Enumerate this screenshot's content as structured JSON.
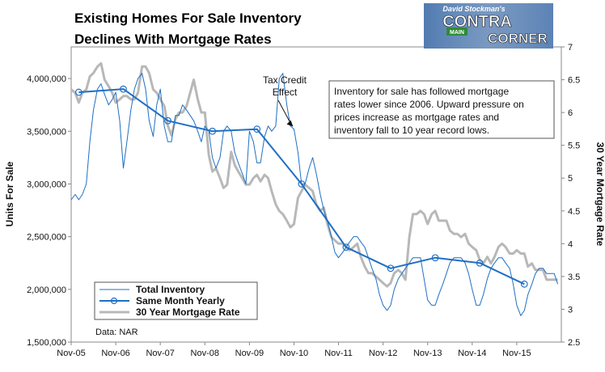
{
  "chart_data": {
    "type": "line",
    "title_lines": [
      "Existing Homes For Sale Inventory",
      "Declines With Mortgage Rates"
    ],
    "ylabel_left": "Units For Sale",
    "ylabel_right": "30 Year Mortgage Rate",
    "ylim_left": [
      1500000,
      4300000
    ],
    "ylim_right": [
      2.5,
      7
    ],
    "xlim": [
      2005.83,
      2016.83
    ],
    "x_tick_labels": [
      "Nov-05",
      "Nov-06",
      "Nov-07",
      "Nov-08",
      "Nov-09",
      "Nov-10",
      "Nov-11",
      "Nov-12",
      "Nov-13",
      "Nov-14",
      "Nov-15"
    ],
    "x_tick_values": [
      2005.83,
      2006.83,
      2007.83,
      2008.83,
      2009.83,
      2010.83,
      2011.83,
      2012.83,
      2013.83,
      2014.83,
      2015.83
    ],
    "y_tick_labels_left": [
      "1,500,000",
      "2,000,000",
      "2,500,000",
      "3,000,000",
      "3,500,000",
      "4,000,000"
    ],
    "y_tick_values_left": [
      1500000,
      2000000,
      2500000,
      3000000,
      3500000,
      4000000
    ],
    "y_tick_labels_right": [
      "2.5",
      "3",
      "3.5",
      "4",
      "4.5",
      "5",
      "5.5",
      "6",
      "6.5",
      "7"
    ],
    "y_tick_values_right": [
      2.5,
      3,
      3.5,
      4,
      4.5,
      5,
      5.5,
      6,
      6.5,
      7
    ],
    "grid": false,
    "legend_position": "bottom-left",
    "series": [
      {
        "name": "Total Inventory",
        "axis": "left",
        "color": "#1f6fc4",
        "x": [
          2005.83,
          2005.92,
          2006.0,
          2006.08,
          2006.17,
          2006.25,
          2006.33,
          2006.42,
          2006.5,
          2006.58,
          2006.67,
          2006.75,
          2006.83,
          2006.92,
          2007.0,
          2007.08,
          2007.17,
          2007.25,
          2007.33,
          2007.42,
          2007.5,
          2007.58,
          2007.67,
          2007.75,
          2007.83,
          2007.92,
          2008.0,
          2008.08,
          2008.17,
          2008.25,
          2008.33,
          2008.42,
          2008.5,
          2008.58,
          2008.67,
          2008.75,
          2008.83,
          2008.92,
          2009.0,
          2009.08,
          2009.17,
          2009.25,
          2009.33,
          2009.42,
          2009.5,
          2009.58,
          2009.67,
          2009.75,
          2009.83,
          2009.92,
          2010.0,
          2010.08,
          2010.17,
          2010.25,
          2010.33,
          2010.42,
          2010.5,
          2010.58,
          2010.67,
          2010.75,
          2010.83,
          2010.92,
          2011.0,
          2011.08,
          2011.17,
          2011.25,
          2011.33,
          2011.42,
          2011.5,
          2011.58,
          2011.67,
          2011.75,
          2011.83,
          2011.92,
          2012.0,
          2012.08,
          2012.17,
          2012.25,
          2012.33,
          2012.42,
          2012.5,
          2012.58,
          2012.67,
          2012.75,
          2012.83,
          2012.92,
          2013.0,
          2013.08,
          2013.17,
          2013.25,
          2013.33,
          2013.42,
          2013.5,
          2013.58,
          2013.67,
          2013.75,
          2013.83,
          2013.92,
          2014.0,
          2014.08,
          2014.17,
          2014.25,
          2014.33,
          2014.42,
          2014.5,
          2014.58,
          2014.67,
          2014.75,
          2014.83,
          2014.92,
          2015.0,
          2015.08,
          2015.17,
          2015.25,
          2015.33,
          2015.42,
          2015.5,
          2015.58,
          2015.67,
          2015.75,
          2015.83,
          2015.92,
          2016.0,
          2016.08,
          2016.17,
          2016.25,
          2016.33,
          2016.42,
          2016.5,
          2016.58,
          2016.67,
          2016.75
        ],
        "values": [
          2850000,
          2900000,
          2850000,
          2900000,
          3000000,
          3400000,
          3700000,
          3900000,
          3950000,
          3850000,
          3750000,
          3800000,
          3870000,
          3600000,
          3150000,
          3400000,
          3700000,
          3900000,
          4000000,
          4050000,
          3900000,
          3600000,
          3450000,
          3750000,
          3900000,
          3550000,
          3400000,
          3400000,
          3650000,
          3650000,
          3750000,
          3700000,
          3650000,
          3600000,
          3500000,
          3400000,
          3550000,
          3500000,
          3250000,
          3150000,
          3250000,
          3500000,
          3550000,
          3500000,
          3300000,
          3200000,
          3100000,
          3000000,
          3500000,
          3400000,
          3200000,
          3200000,
          3450000,
          3550000,
          3500000,
          3550000,
          4000000,
          4050000,
          3750000,
          3550000,
          3520000,
          3300000,
          3000000,
          3000000,
          3150000,
          3250000,
          3100000,
          2900000,
          2750000,
          2650000,
          2500000,
          2350000,
          2300000,
          2350000,
          2400000,
          2450000,
          2500000,
          2500000,
          2450000,
          2400000,
          2300000,
          2200000,
          2100000,
          1950000,
          1850000,
          1800000,
          1850000,
          2000000,
          2100000,
          2150000,
          2200000,
          2250000,
          2300000,
          2300000,
          2300000,
          2100000,
          1900000,
          1850000,
          1850000,
          1950000,
          2050000,
          2150000,
          2250000,
          2300000,
          2300000,
          2300000,
          2250000,
          2150000,
          2000000,
          1850000,
          1850000,
          1950000,
          2100000,
          2200000,
          2250000,
          2300000,
          2300000,
          2250000,
          2200000,
          2050000,
          1850000,
          1750000,
          1800000,
          1950000,
          2050000,
          2150000,
          2200000,
          2200000,
          2150000,
          2150000,
          2150000,
          2050000
        ]
      },
      {
        "name": "Same Month Yearly",
        "axis": "left",
        "color": "#1f6fc4",
        "x": [
          2006.0,
          2007.0,
          2008.0,
          2009.0,
          2010.0,
          2011.0,
          2012.0,
          2013.0,
          2014.0,
          2015.0,
          2016.0
        ],
        "values": [
          3870000,
          3900000,
          3600000,
          3500000,
          3520000,
          3000000,
          2400000,
          2200000,
          2300000,
          2250000,
          2050000
        ]
      },
      {
        "name": "30 Year Mortgage Rate",
        "axis": "right",
        "color": "#b8b8b8",
        "x": [
          2005.83,
          2005.92,
          2006.0,
          2006.08,
          2006.17,
          2006.25,
          2006.33,
          2006.42,
          2006.5,
          2006.58,
          2006.67,
          2006.75,
          2006.83,
          2006.92,
          2007.0,
          2007.08,
          2007.17,
          2007.25,
          2007.33,
          2007.42,
          2007.5,
          2007.58,
          2007.67,
          2007.75,
          2007.83,
          2007.92,
          2008.0,
          2008.08,
          2008.17,
          2008.25,
          2008.33,
          2008.42,
          2008.5,
          2008.58,
          2008.67,
          2008.75,
          2008.83,
          2008.92,
          2009.0,
          2009.08,
          2009.17,
          2009.25,
          2009.33,
          2009.42,
          2009.5,
          2009.58,
          2009.67,
          2009.75,
          2009.83,
          2009.92,
          2010.0,
          2010.08,
          2010.17,
          2010.25,
          2010.33,
          2010.42,
          2010.5,
          2010.58,
          2010.67,
          2010.75,
          2010.83,
          2010.92,
          2011.0,
          2011.08,
          2011.17,
          2011.25,
          2011.33,
          2011.42,
          2011.5,
          2011.58,
          2011.67,
          2011.75,
          2011.83,
          2011.92,
          2012.0,
          2012.08,
          2012.17,
          2012.25,
          2012.33,
          2012.42,
          2012.5,
          2012.58,
          2012.67,
          2012.75,
          2012.83,
          2012.92,
          2013.0,
          2013.08,
          2013.17,
          2013.25,
          2013.33,
          2013.42,
          2013.5,
          2013.58,
          2013.67,
          2013.75,
          2013.83,
          2013.92,
          2014.0,
          2014.08,
          2014.17,
          2014.25,
          2014.33,
          2014.42,
          2014.5,
          2014.58,
          2014.67,
          2014.75,
          2014.83,
          2014.92,
          2015.0,
          2015.08,
          2015.17,
          2015.25,
          2015.33,
          2015.42,
          2015.5,
          2015.58,
          2015.67,
          2015.75,
          2015.83,
          2015.92,
          2016.0,
          2016.08,
          2016.17,
          2016.25,
          2016.33,
          2016.42,
          2016.5,
          2016.58,
          2016.67,
          2016.75
        ],
        "values": [
          6.35,
          6.3,
          6.15,
          6.3,
          6.35,
          6.55,
          6.6,
          6.7,
          6.75,
          6.5,
          6.4,
          6.3,
          6.15,
          6.2,
          6.25,
          6.25,
          6.2,
          6.2,
          6.3,
          6.7,
          6.7,
          6.6,
          6.35,
          6.3,
          6.2,
          6.1,
          5.8,
          5.65,
          5.9,
          6.0,
          6.0,
          6.1,
          6.3,
          6.5,
          6.2,
          6.0,
          6.0,
          5.35,
          5.1,
          5.15,
          5.0,
          4.85,
          4.9,
          5.4,
          5.2,
          5.1,
          5.0,
          4.9,
          4.9,
          5.0,
          5.05,
          4.95,
          5.05,
          5.0,
          4.8,
          4.6,
          4.5,
          4.45,
          4.35,
          4.25,
          4.3,
          4.7,
          4.8,
          4.9,
          4.85,
          4.8,
          4.6,
          4.5,
          4.55,
          4.3,
          4.1,
          4.05,
          4.0,
          4.0,
          3.95,
          3.9,
          3.95,
          4.0,
          3.8,
          3.65,
          3.55,
          3.55,
          3.5,
          3.45,
          3.4,
          3.35,
          3.4,
          3.55,
          3.6,
          3.55,
          3.45,
          4.1,
          4.45,
          4.45,
          4.5,
          4.45,
          4.3,
          4.45,
          4.5,
          4.35,
          4.35,
          4.35,
          4.2,
          4.15,
          4.15,
          4.1,
          4.15,
          4.0,
          3.95,
          3.9,
          3.75,
          3.7,
          3.8,
          3.7,
          3.8,
          3.95,
          4.0,
          3.95,
          3.85,
          3.85,
          3.9,
          3.85,
          3.85,
          3.65,
          3.7,
          3.6,
          3.6,
          3.6,
          3.45,
          3.45,
          3.45,
          3.45
        ]
      }
    ],
    "annotations": [
      {
        "text_lines": [
          "Tax Credit",
          "Effect"
        ],
        "x": 2010.83,
        "y": 3520000
      },
      {
        "text_lines": [
          "Inventory for sale has followed mortgage",
          "rates lower since 2006. Upward pressure on",
          "prices increase as mortgage rates and",
          "inventory fall to 10 year record lows."
        ]
      }
    ],
    "source_note": "Data: NAR"
  },
  "logo": {
    "top_text": "David Stockman's",
    "main_text_1": "CONTRA",
    "main_text_2": "CORNER",
    "sign_text": "MAIN"
  },
  "colors": {
    "inventory": "#1f6fc4",
    "yearly": "#1f6fc4",
    "mortgage": "#b8b8b8"
  }
}
